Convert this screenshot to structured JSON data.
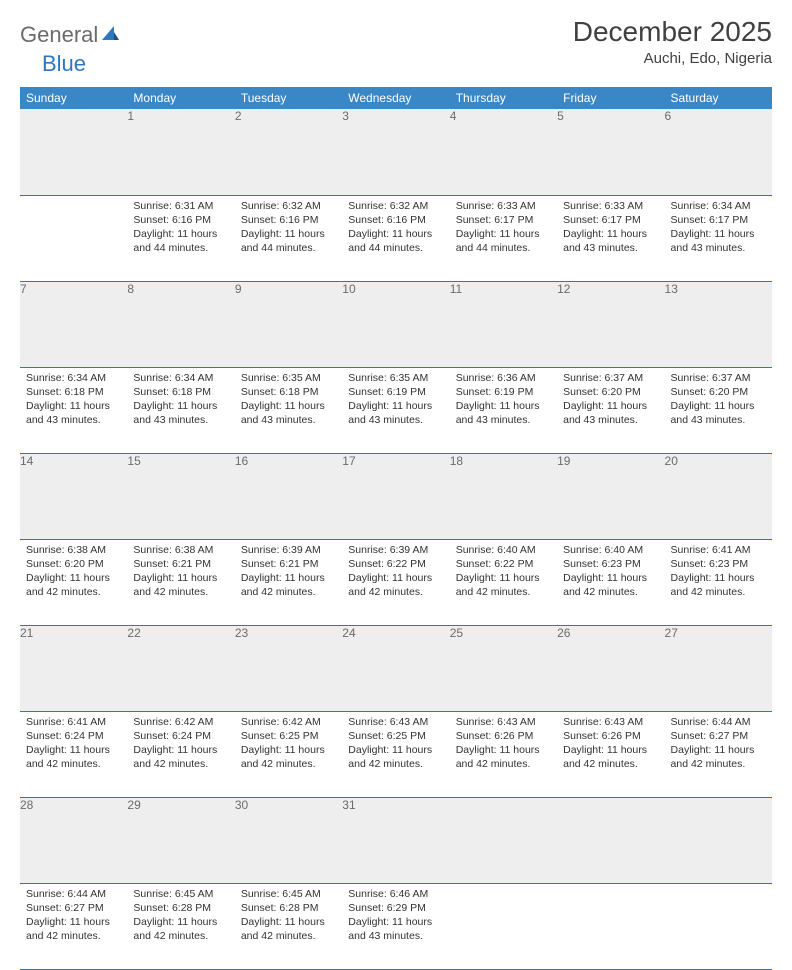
{
  "brand": {
    "word1": "General",
    "word2": "Blue"
  },
  "title": "December 2025",
  "location": "Auchi, Edo, Nigeria",
  "colors": {
    "header_bg": "#3a87c8",
    "header_text": "#ffffff",
    "daynum_bg": "#eeeeee",
    "daynum_text": "#6b6b6b",
    "row_border": "#2f77bc",
    "logo_gray": "#6b6b6b",
    "logo_blue": "#2f77bc",
    "body_text": "#333333"
  },
  "days_of_week": [
    "Sunday",
    "Monday",
    "Tuesday",
    "Wednesday",
    "Thursday",
    "Friday",
    "Saturday"
  ],
  "weeks": [
    [
      null,
      {
        "n": "1",
        "sr": "6:31 AM",
        "ss": "6:16 PM",
        "dl": "11 hours and 44 minutes."
      },
      {
        "n": "2",
        "sr": "6:32 AM",
        "ss": "6:16 PM",
        "dl": "11 hours and 44 minutes."
      },
      {
        "n": "3",
        "sr": "6:32 AM",
        "ss": "6:16 PM",
        "dl": "11 hours and 44 minutes."
      },
      {
        "n": "4",
        "sr": "6:33 AM",
        "ss": "6:17 PM",
        "dl": "11 hours and 44 minutes."
      },
      {
        "n": "5",
        "sr": "6:33 AM",
        "ss": "6:17 PM",
        "dl": "11 hours and 43 minutes."
      },
      {
        "n": "6",
        "sr": "6:34 AM",
        "ss": "6:17 PM",
        "dl": "11 hours and 43 minutes."
      }
    ],
    [
      {
        "n": "7",
        "sr": "6:34 AM",
        "ss": "6:18 PM",
        "dl": "11 hours and 43 minutes."
      },
      {
        "n": "8",
        "sr": "6:34 AM",
        "ss": "6:18 PM",
        "dl": "11 hours and 43 minutes."
      },
      {
        "n": "9",
        "sr": "6:35 AM",
        "ss": "6:18 PM",
        "dl": "11 hours and 43 minutes."
      },
      {
        "n": "10",
        "sr": "6:35 AM",
        "ss": "6:19 PM",
        "dl": "11 hours and 43 minutes."
      },
      {
        "n": "11",
        "sr": "6:36 AM",
        "ss": "6:19 PM",
        "dl": "11 hours and 43 minutes."
      },
      {
        "n": "12",
        "sr": "6:37 AM",
        "ss": "6:20 PM",
        "dl": "11 hours and 43 minutes."
      },
      {
        "n": "13",
        "sr": "6:37 AM",
        "ss": "6:20 PM",
        "dl": "11 hours and 43 minutes."
      }
    ],
    [
      {
        "n": "14",
        "sr": "6:38 AM",
        "ss": "6:20 PM",
        "dl": "11 hours and 42 minutes."
      },
      {
        "n": "15",
        "sr": "6:38 AM",
        "ss": "6:21 PM",
        "dl": "11 hours and 42 minutes."
      },
      {
        "n": "16",
        "sr": "6:39 AM",
        "ss": "6:21 PM",
        "dl": "11 hours and 42 minutes."
      },
      {
        "n": "17",
        "sr": "6:39 AM",
        "ss": "6:22 PM",
        "dl": "11 hours and 42 minutes."
      },
      {
        "n": "18",
        "sr": "6:40 AM",
        "ss": "6:22 PM",
        "dl": "11 hours and 42 minutes."
      },
      {
        "n": "19",
        "sr": "6:40 AM",
        "ss": "6:23 PM",
        "dl": "11 hours and 42 minutes."
      },
      {
        "n": "20",
        "sr": "6:41 AM",
        "ss": "6:23 PM",
        "dl": "11 hours and 42 minutes."
      }
    ],
    [
      {
        "n": "21",
        "sr": "6:41 AM",
        "ss": "6:24 PM",
        "dl": "11 hours and 42 minutes."
      },
      {
        "n": "22",
        "sr": "6:42 AM",
        "ss": "6:24 PM",
        "dl": "11 hours and 42 minutes."
      },
      {
        "n": "23",
        "sr": "6:42 AM",
        "ss": "6:25 PM",
        "dl": "11 hours and 42 minutes."
      },
      {
        "n": "24",
        "sr": "6:43 AM",
        "ss": "6:25 PM",
        "dl": "11 hours and 42 minutes."
      },
      {
        "n": "25",
        "sr": "6:43 AM",
        "ss": "6:26 PM",
        "dl": "11 hours and 42 minutes."
      },
      {
        "n": "26",
        "sr": "6:43 AM",
        "ss": "6:26 PM",
        "dl": "11 hours and 42 minutes."
      },
      {
        "n": "27",
        "sr": "6:44 AM",
        "ss": "6:27 PM",
        "dl": "11 hours and 42 minutes."
      }
    ],
    [
      {
        "n": "28",
        "sr": "6:44 AM",
        "ss": "6:27 PM",
        "dl": "11 hours and 42 minutes."
      },
      {
        "n": "29",
        "sr": "6:45 AM",
        "ss": "6:28 PM",
        "dl": "11 hours and 42 minutes."
      },
      {
        "n": "30",
        "sr": "6:45 AM",
        "ss": "6:28 PM",
        "dl": "11 hours and 42 minutes."
      },
      {
        "n": "31",
        "sr": "6:46 AM",
        "ss": "6:29 PM",
        "dl": "11 hours and 43 minutes."
      },
      null,
      null,
      null
    ]
  ],
  "labels": {
    "sunrise": "Sunrise:",
    "sunset": "Sunset:",
    "daylight": "Daylight:"
  }
}
